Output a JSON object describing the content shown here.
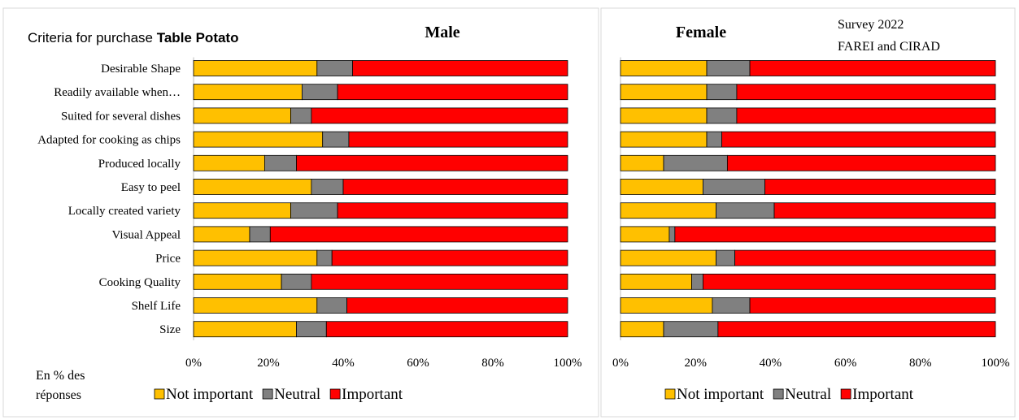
{
  "header": {
    "criteria_label": "Criteria for purchase ",
    "criteria_bold": "Table Potato",
    "survey_line1": "Survey 2022",
    "survey_line2": "FAREI and CIRAD",
    "unit_line1": "En % des",
    "unit_line2": "réponses"
  },
  "colors": {
    "not_important": "#FFC000",
    "neutral": "#808080",
    "important": "#FF0000"
  },
  "chart_data": [
    {
      "type": "bar",
      "stacked": true,
      "orientation": "horizontal",
      "title": "Male",
      "categories": [
        "Desirable Shape",
        "Readily available when…",
        "Suited for several dishes",
        "Adapted for cooking as chips",
        "Produced locally",
        "Easy to peel",
        "Locally created variety",
        "Visual Appeal",
        "Price",
        "Cooking Quality",
        "Shelf Life",
        "Size"
      ],
      "series": [
        {
          "name": "Not important",
          "values": [
            33,
            29,
            26,
            34.5,
            19,
            31.5,
            26,
            15,
            33,
            23.5,
            33,
            27.5
          ]
        },
        {
          "name": "Neutral",
          "values": [
            9.5,
            9.5,
            5.5,
            7,
            8.5,
            8.5,
            12.5,
            5.5,
            4,
            8,
            8,
            8
          ]
        },
        {
          "name": "Important",
          "values": [
            57.5,
            61.5,
            68.5,
            58.5,
            72.5,
            60,
            61.5,
            79.5,
            63,
            68.5,
            59,
            64.5
          ]
        }
      ],
      "xlim": [
        0,
        100
      ],
      "xticks": [
        "0%",
        "20%",
        "40%",
        "60%",
        "80%",
        "100%"
      ],
      "legend": "bottom"
    },
    {
      "type": "bar",
      "stacked": true,
      "orientation": "horizontal",
      "title": "Female",
      "categories": [
        "Desirable Shape",
        "Readily available when…",
        "Suited for several dishes",
        "Adapted for cooking as chips",
        "Produced locally",
        "Easy to peel",
        "Locally created variety",
        "Visual Appeal",
        "Price",
        "Cooking Quality",
        "Shelf Life",
        "Size"
      ],
      "series": [
        {
          "name": "Not important",
          "values": [
            23,
            23,
            23,
            23,
            11.5,
            22,
            25.5,
            13,
            25.5,
            19,
            24.5,
            11.5
          ]
        },
        {
          "name": "Neutral",
          "values": [
            11.5,
            8,
            8,
            4,
            17,
            16.5,
            15.5,
            1.5,
            5,
            3,
            10,
            14.5
          ]
        },
        {
          "name": "Important",
          "values": [
            65.5,
            69,
            69,
            73,
            71.5,
            61.5,
            59,
            85.5,
            69.5,
            78,
            65.5,
            74
          ]
        }
      ],
      "xlim": [
        0,
        100
      ],
      "xticks": [
        "0%",
        "20%",
        "40%",
        "60%",
        "80%",
        "100%"
      ],
      "legend": "bottom"
    }
  ]
}
